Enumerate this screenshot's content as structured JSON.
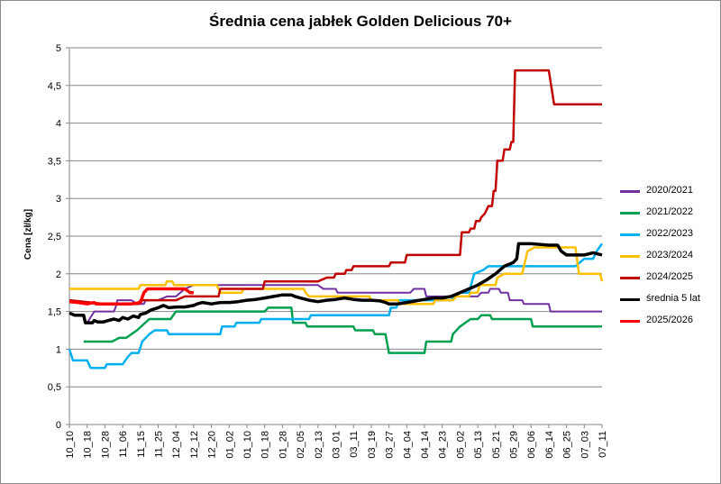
{
  "chart_data": {
    "type": "line",
    "title": "Średnia cena jabłek Golden Delicious 70+",
    "xlabel": "",
    "ylabel": "Cena [zł/kg]",
    "ylim": [
      0,
      5
    ],
    "y_ticks": [
      "0",
      "0,5",
      "1",
      "1,5",
      "2",
      "2,5",
      "3",
      "3,5",
      "4",
      "4,5",
      "5"
    ],
    "grid": "horizontal",
    "legend_position": "right",
    "x_tick_labels": [
      "10_10",
      "10_18",
      "10_28",
      "11_06",
      "11_15",
      "11_25",
      "12_04",
      "12_12",
      "12_20",
      "01_02",
      "01_10",
      "01_18",
      "01_28",
      "02_05",
      "02_13",
      "03_01",
      "03_11",
      "03_19",
      "03_27",
      "04_04",
      "04_14",
      "04_23",
      "05_02",
      "05_13",
      "05_21",
      "05_29",
      "06_06",
      "06_14",
      "06_25",
      "07_03",
      "07_11"
    ],
    "series": [
      {
        "name": "2020/2021",
        "color": "#7030a0",
        "width": 2,
        "points": [
          [
            1.0,
            1.35
          ],
          [
            1.4,
            1.5
          ],
          [
            2.5,
            1.5
          ],
          [
            2.6,
            1.55
          ],
          [
            2.7,
            1.65
          ],
          [
            3.5,
            1.65
          ],
          [
            3.8,
            1.6
          ],
          [
            4.2,
            1.6
          ],
          [
            4.3,
            1.65
          ],
          [
            4.7,
            1.65
          ],
          [
            5.0,
            1.65
          ],
          [
            5.5,
            1.7
          ],
          [
            6.0,
            1.7
          ],
          [
            6.5,
            1.8
          ],
          [
            7.0,
            1.85
          ],
          [
            14.0,
            1.85
          ],
          [
            14.3,
            1.8
          ],
          [
            15.0,
            1.8
          ],
          [
            15.1,
            1.75
          ],
          [
            19.2,
            1.75
          ],
          [
            19.4,
            1.8
          ],
          [
            20.0,
            1.8
          ],
          [
            20.1,
            1.7
          ],
          [
            23.0,
            1.7
          ],
          [
            23.2,
            1.75
          ],
          [
            23.6,
            1.75
          ],
          [
            23.7,
            1.8
          ],
          [
            24.2,
            1.8
          ],
          [
            24.3,
            1.75
          ],
          [
            24.7,
            1.75
          ],
          [
            24.8,
            1.65
          ],
          [
            25.5,
            1.65
          ],
          [
            25.6,
            1.6
          ],
          [
            27.0,
            1.6
          ],
          [
            27.1,
            1.5
          ],
          [
            30.0,
            1.5
          ]
        ]
      },
      {
        "name": "2021/2022",
        "color": "#00a050",
        "width": 2.5,
        "points": [
          [
            0.8,
            1.1
          ],
          [
            2.4,
            1.1
          ],
          [
            2.8,
            1.15
          ],
          [
            3.2,
            1.15
          ],
          [
            3.8,
            1.25
          ],
          [
            4.5,
            1.4
          ],
          [
            5.7,
            1.4
          ],
          [
            6.0,
            1.5
          ],
          [
            11.0,
            1.5
          ],
          [
            11.2,
            1.55
          ],
          [
            12.5,
            1.55
          ],
          [
            12.6,
            1.35
          ],
          [
            13.3,
            1.35
          ],
          [
            13.4,
            1.3
          ],
          [
            16.0,
            1.3
          ],
          [
            16.1,
            1.25
          ],
          [
            17.1,
            1.25
          ],
          [
            17.2,
            1.2
          ],
          [
            17.8,
            1.2
          ],
          [
            18.0,
            0.95
          ],
          [
            20.0,
            0.95
          ],
          [
            20.1,
            1.1
          ],
          [
            21.5,
            1.1
          ],
          [
            21.6,
            1.2
          ],
          [
            22.0,
            1.3
          ],
          [
            22.3,
            1.35
          ],
          [
            22.6,
            1.4
          ],
          [
            23.0,
            1.4
          ],
          [
            23.2,
            1.45
          ],
          [
            23.7,
            1.45
          ],
          [
            23.8,
            1.4
          ],
          [
            26.0,
            1.4
          ],
          [
            26.1,
            1.3
          ],
          [
            30.0,
            1.3
          ]
        ]
      },
      {
        "name": "2022/2023",
        "color": "#00b0f0",
        "width": 2.5,
        "points": [
          [
            0.0,
            1.0
          ],
          [
            0.2,
            0.85
          ],
          [
            1.0,
            0.85
          ],
          [
            1.2,
            0.75
          ],
          [
            2.0,
            0.75
          ],
          [
            2.1,
            0.8
          ],
          [
            3.0,
            0.8
          ],
          [
            3.3,
            0.9
          ],
          [
            3.5,
            0.95
          ],
          [
            3.9,
            0.95
          ],
          [
            4.1,
            1.1
          ],
          [
            4.5,
            1.2
          ],
          [
            4.8,
            1.25
          ],
          [
            5.5,
            1.25
          ],
          [
            5.6,
            1.2
          ],
          [
            8.5,
            1.2
          ],
          [
            8.6,
            1.3
          ],
          [
            9.3,
            1.3
          ],
          [
            9.4,
            1.35
          ],
          [
            10.7,
            1.35
          ],
          [
            10.8,
            1.4
          ],
          [
            13.5,
            1.4
          ],
          [
            13.6,
            1.45
          ],
          [
            18.0,
            1.45
          ],
          [
            18.1,
            1.55
          ],
          [
            18.4,
            1.55
          ],
          [
            18.6,
            1.65
          ],
          [
            20.0,
            1.65
          ],
          [
            21.5,
            1.65
          ],
          [
            22.0,
            1.75
          ],
          [
            22.5,
            1.75
          ],
          [
            22.8,
            2.0
          ],
          [
            23.3,
            2.05
          ],
          [
            23.6,
            2.1
          ],
          [
            24.0,
            2.1
          ],
          [
            24.2,
            2.1
          ],
          [
            28.5,
            2.1
          ],
          [
            29.0,
            2.2
          ],
          [
            29.5,
            2.2
          ],
          [
            29.7,
            2.3
          ],
          [
            30.0,
            2.4
          ]
        ]
      },
      {
        "name": "2023/2024",
        "color": "#ffc000",
        "width": 2.5,
        "points": [
          [
            0.0,
            1.8
          ],
          [
            3.9,
            1.8
          ],
          [
            4.0,
            1.85
          ],
          [
            5.4,
            1.85
          ],
          [
            5.5,
            1.9
          ],
          [
            5.8,
            1.9
          ],
          [
            5.9,
            1.85
          ],
          [
            8.3,
            1.85
          ],
          [
            8.4,
            1.8
          ],
          [
            8.5,
            1.75
          ],
          [
            9.7,
            1.75
          ],
          [
            9.8,
            1.8
          ],
          [
            13.2,
            1.8
          ],
          [
            13.3,
            1.75
          ],
          [
            13.5,
            1.7
          ],
          [
            16.9,
            1.7
          ],
          [
            17.0,
            1.65
          ],
          [
            18.5,
            1.65
          ],
          [
            18.6,
            1.6
          ],
          [
            20.5,
            1.6
          ],
          [
            20.6,
            1.65
          ],
          [
            21.6,
            1.65
          ],
          [
            21.8,
            1.7
          ],
          [
            22.5,
            1.7
          ],
          [
            22.6,
            1.75
          ],
          [
            23.0,
            1.75
          ],
          [
            23.1,
            1.85
          ],
          [
            24.0,
            1.85
          ],
          [
            24.1,
            1.95
          ],
          [
            24.5,
            2.0
          ],
          [
            25.5,
            2.0
          ],
          [
            25.8,
            2.3
          ],
          [
            26.2,
            2.35
          ],
          [
            28.5,
            2.35
          ],
          [
            28.7,
            2.0
          ],
          [
            29.9,
            2.0
          ],
          [
            30.0,
            1.9
          ]
        ]
      },
      {
        "name": "2024/2025",
        "color": "#c00000",
        "width": 2.5,
        "points": [
          [
            0.0,
            1.65
          ],
          [
            2.0,
            1.6
          ],
          [
            3.9,
            1.6
          ],
          [
            4.0,
            1.65
          ],
          [
            5.5,
            1.65
          ],
          [
            6.0,
            1.65
          ],
          [
            6.5,
            1.7
          ],
          [
            8.4,
            1.7
          ],
          [
            8.5,
            1.8
          ],
          [
            10.9,
            1.8
          ],
          [
            11.0,
            1.9
          ],
          [
            14.0,
            1.9
          ],
          [
            14.5,
            1.95
          ],
          [
            14.9,
            1.95
          ],
          [
            15.0,
            2.0
          ],
          [
            15.5,
            2.0
          ],
          [
            15.6,
            2.05
          ],
          [
            15.9,
            2.05
          ],
          [
            16.0,
            2.1
          ],
          [
            18.0,
            2.1
          ],
          [
            18.1,
            2.15
          ],
          [
            18.9,
            2.15
          ],
          [
            19.0,
            2.25
          ],
          [
            22.0,
            2.25
          ],
          [
            22.1,
            2.55
          ],
          [
            22.5,
            2.55
          ],
          [
            22.6,
            2.6
          ],
          [
            22.8,
            2.6
          ],
          [
            22.9,
            2.7
          ],
          [
            23.1,
            2.7
          ],
          [
            23.2,
            2.75
          ],
          [
            23.4,
            2.8
          ],
          [
            23.6,
            2.9
          ],
          [
            23.8,
            2.9
          ],
          [
            23.9,
            3.1
          ],
          [
            24.0,
            3.1
          ],
          [
            24.1,
            3.5
          ],
          [
            24.4,
            3.5
          ],
          [
            24.5,
            3.65
          ],
          [
            24.8,
            3.65
          ],
          [
            24.9,
            3.75
          ],
          [
            25.0,
            3.75
          ],
          [
            25.1,
            4.7
          ],
          [
            26.5,
            4.7
          ],
          [
            27.0,
            4.7
          ],
          [
            27.3,
            4.25
          ],
          [
            30.0,
            4.25
          ]
        ]
      },
      {
        "name": "średnia 5 lat",
        "color": "#000000",
        "width": 3.5,
        "points": [
          [
            0.0,
            1.48
          ],
          [
            0.3,
            1.45
          ],
          [
            0.8,
            1.45
          ],
          [
            0.9,
            1.35
          ],
          [
            1.3,
            1.35
          ],
          [
            1.4,
            1.38
          ],
          [
            1.6,
            1.36
          ],
          [
            1.9,
            1.36
          ],
          [
            2.2,
            1.38
          ],
          [
            2.5,
            1.4
          ],
          [
            2.8,
            1.38
          ],
          [
            3.0,
            1.42
          ],
          [
            3.3,
            1.4
          ],
          [
            3.6,
            1.44
          ],
          [
            3.9,
            1.42
          ],
          [
            4.0,
            1.46
          ],
          [
            4.3,
            1.48
          ],
          [
            4.6,
            1.52
          ],
          [
            5.0,
            1.55
          ],
          [
            5.3,
            1.58
          ],
          [
            5.6,
            1.55
          ],
          [
            6.0,
            1.56
          ],
          [
            6.5,
            1.56
          ],
          [
            7.0,
            1.58
          ],
          [
            7.2,
            1.6
          ],
          [
            7.5,
            1.62
          ],
          [
            8.0,
            1.6
          ],
          [
            8.5,
            1.62
          ],
          [
            9.0,
            1.62
          ],
          [
            9.5,
            1.63
          ],
          [
            10.0,
            1.65
          ],
          [
            10.5,
            1.66
          ],
          [
            11.0,
            1.68
          ],
          [
            11.5,
            1.7
          ],
          [
            12.0,
            1.72
          ],
          [
            12.5,
            1.72
          ],
          [
            12.7,
            1.7
          ],
          [
            13.0,
            1.68
          ],
          [
            13.5,
            1.65
          ],
          [
            14.0,
            1.63
          ],
          [
            14.5,
            1.65
          ],
          [
            15.0,
            1.66
          ],
          [
            15.5,
            1.68
          ],
          [
            16.0,
            1.66
          ],
          [
            16.5,
            1.65
          ],
          [
            17.0,
            1.65
          ],
          [
            17.5,
            1.64
          ],
          [
            17.8,
            1.62
          ],
          [
            18.0,
            1.6
          ],
          [
            18.5,
            1.6
          ],
          [
            19.0,
            1.62
          ],
          [
            19.5,
            1.64
          ],
          [
            20.0,
            1.66
          ],
          [
            20.5,
            1.68
          ],
          [
            21.0,
            1.68
          ],
          [
            21.5,
            1.7
          ],
          [
            22.0,
            1.75
          ],
          [
            22.5,
            1.8
          ],
          [
            23.0,
            1.85
          ],
          [
            23.5,
            1.92
          ],
          [
            24.0,
            2.0
          ],
          [
            24.5,
            2.1
          ],
          [
            25.0,
            2.15
          ],
          [
            25.2,
            2.2
          ],
          [
            25.3,
            2.4
          ],
          [
            26.0,
            2.4
          ],
          [
            27.0,
            2.38
          ],
          [
            27.5,
            2.38
          ],
          [
            27.7,
            2.3
          ],
          [
            28.0,
            2.25
          ],
          [
            28.5,
            2.25
          ],
          [
            29.0,
            2.25
          ],
          [
            29.5,
            2.28
          ],
          [
            30.0,
            2.25
          ]
        ]
      },
      {
        "name": "2025/2026",
        "color": "#ff0000",
        "width": 3.5,
        "points": [
          [
            0.0,
            1.63
          ],
          [
            0.5,
            1.62
          ],
          [
            1.0,
            1.6
          ],
          [
            1.4,
            1.62
          ],
          [
            1.5,
            1.6
          ],
          [
            2.0,
            1.6
          ],
          [
            3.5,
            1.6
          ],
          [
            4.0,
            1.62
          ],
          [
            4.2,
            1.75
          ],
          [
            4.4,
            1.8
          ],
          [
            5.0,
            1.8
          ],
          [
            6.5,
            1.8
          ],
          [
            6.8,
            1.75
          ],
          [
            7.0,
            1.75
          ]
        ]
      }
    ]
  }
}
